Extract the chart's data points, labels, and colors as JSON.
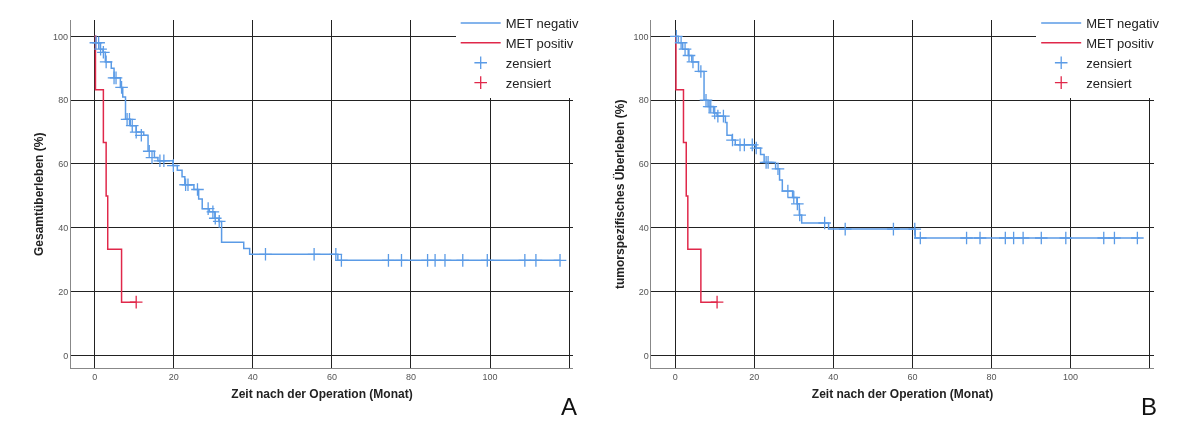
{
  "chart_data": [
    {
      "type": "step",
      "xlabel": "Zeit nach der Operation (Monat)",
      "ylabel": "Gesamtüberleben (%)",
      "annotations": [
        "A"
      ],
      "xlim": [
        -6,
        121
      ],
      "ylim": [
        -4,
        105
      ],
      "xticks": [
        0,
        20,
        40,
        60,
        80,
        100,
        {
          "value": 120,
          "label": null
        }
      ],
      "yticks": [
        0,
        20,
        40,
        60,
        80,
        100
      ],
      "grid": true,
      "legend": "top right",
      "series": [
        {
          "name": "MET negativ",
          "color": "#5b9be6",
          "x": [
            0,
            0.3,
            1.4,
            2.1,
            2.7,
            4.2,
            4.9,
            6.5,
            7.1,
            7.8,
            9.0,
            10.5,
            12.4,
            13.5,
            15.1,
            16.0,
            19.8,
            20.9,
            22.1,
            22.8,
            25.1,
            26.3,
            27.2,
            29.0,
            30.4,
            31.4,
            32.1,
            37.7,
            39.2,
            61.5,
            117.7
          ],
          "values": [
            100,
            98,
            96,
            95,
            92,
            90,
            87,
            84,
            81,
            74,
            72,
            70,
            69,
            64,
            62,
            61,
            59.5,
            58,
            56,
            53.5,
            52,
            49,
            46,
            45,
            43,
            42,
            35.5,
            33.5,
            31.7,
            29.8,
            29.8
          ]
        },
        {
          "name": "MET positiv",
          "color": "#e0284a",
          "x": [
            0,
            0.2,
            2.2,
            2.9,
            3.3,
            6.8,
            10.5
          ],
          "values": [
            100,
            83.3,
            66.7,
            50,
            33.3,
            16.7,
            16.7
          ]
        },
        {
          "name": "zensiert",
          "type": "scatter",
          "marker": "cross",
          "color": "#5b9be6",
          "x": [
            0.3,
            1.0,
            1.5,
            2.2,
            2.9,
            4.9,
            5.4,
            6.8,
            8.2,
            8.8,
            9.5,
            10.5,
            11.8,
            13.8,
            14.5,
            16.5,
            17.5,
            19.9,
            23.0,
            23.6,
            26.0,
            28.7,
            29.9,
            30.5,
            31.5,
            43.2,
            55.5,
            61.0,
            62.4,
            74.3,
            77.6,
            84.2,
            86.1,
            88.6,
            93.1,
            99.3,
            108.8,
            111.6,
            117.7
          ],
          "values": [
            98,
            98,
            96,
            95,
            92,
            87,
            87,
            84,
            74,
            74,
            72,
            70,
            69,
            64,
            62,
            61,
            61,
            59.5,
            53.5,
            53.5,
            52,
            46,
            45,
            43,
            42,
            31.7,
            31.7,
            31.7,
            29.8,
            29.8,
            29.8,
            29.8,
            29.8,
            29.8,
            29.8,
            29.8,
            29.8,
            29.8,
            29.8
          ]
        },
        {
          "name": "zensiert",
          "type": "scatter",
          "marker": "cross",
          "color": "#e0284a",
          "x": [
            10.5
          ],
          "values": [
            16.7
          ]
        }
      ]
    },
    {
      "type": "step",
      "xlabel": "Zeit nach der Operation (Monat)",
      "ylabel": "tumorspezifisches Überleben (%)",
      "annotations": [
        "B"
      ],
      "xlim": [
        -6,
        121
      ],
      "ylim": [
        -4,
        105
      ],
      "xticks": [
        0,
        20,
        40,
        60,
        80,
        100,
        {
          "value": 120,
          "label": null
        }
      ],
      "yticks": [
        0,
        20,
        40,
        60,
        80,
        100
      ],
      "grid": true,
      "legend": "top right",
      "series": [
        {
          "name": "MET negativ",
          "color": "#5b9be6",
          "x": [
            0,
            0.8,
            1.9,
            3.3,
            4.2,
            5.9,
            7.3,
            8.3,
            9.7,
            10.6,
            12.7,
            13.1,
            14.4,
            15.2,
            20.3,
            21.6,
            22.5,
            25.4,
            26.4,
            27.1,
            29.7,
            30.8,
            31.4,
            32.0,
            38.8,
            60.7,
            117.4
          ],
          "values": [
            100,
            98,
            96,
            94,
            92,
            89,
            80,
            78,
            76,
            75,
            73,
            69,
            67.5,
            66,
            65,
            63,
            60.5,
            58.5,
            55,
            51.5,
            49.5,
            47.5,
            44,
            41.5,
            39.6,
            36.8,
            36.8
          ]
        },
        {
          "name": "MET positiv",
          "color": "#e0284a",
          "x": [
            0,
            0.2,
            2.1,
            2.8,
            3.2,
            6.5,
            10.6
          ],
          "values": [
            100,
            83.3,
            66.7,
            50,
            33.3,
            16.7,
            16.7
          ]
        },
        {
          "name": "zensiert",
          "type": "scatter",
          "marker": "cross",
          "color": "#5b9be6",
          "x": [
            0.3,
            0.6,
            1.5,
            2.5,
            3.5,
            4.5,
            6.5,
            7.8,
            8.6,
            9.0,
            10.0,
            10.8,
            12.2,
            14.5,
            16.4,
            17.5,
            19.5,
            20.5,
            23.0,
            23.5,
            26.0,
            28.5,
            30.0,
            30.9,
            31.5,
            37.8,
            43.0,
            55.2,
            60.6,
            62.0,
            73.7,
            77.1,
            83.5,
            85.6,
            88.0,
            92.6,
            98.8,
            108.4,
            111.1,
            116.9
          ],
          "values": [
            100,
            null,
            98,
            96,
            94,
            92,
            89,
            80,
            78,
            78,
            76,
            75,
            75,
            67.5,
            66,
            66,
            66,
            65,
            60.5,
            60.5,
            58.5,
            51.5,
            49.5,
            47.5,
            44,
            41.5,
            39.6,
            39.6,
            39.6,
            36.8,
            36.8,
            36.8,
            36.8,
            36.8,
            36.8,
            36.8,
            36.8,
            36.8,
            36.8,
            36.8
          ]
        },
        {
          "name": "zensiert",
          "type": "scatter",
          "marker": "cross",
          "color": "#e0284a",
          "x": [
            10.6
          ],
          "values": [
            16.7
          ]
        }
      ]
    }
  ]
}
